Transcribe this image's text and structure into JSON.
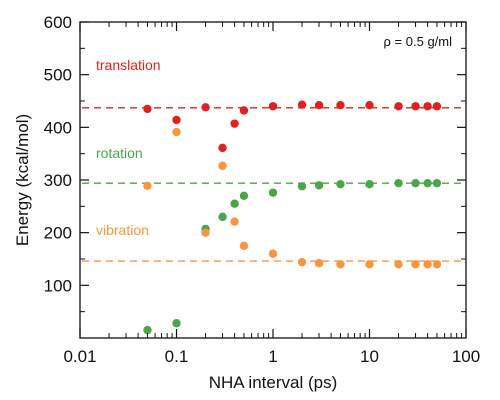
{
  "chart_data": {
    "type": "scatter",
    "xlabel": "NHA interval (ps)",
    "ylabel": "Energy (kcal/mol)",
    "x_scale": "log",
    "xlim": [
      0.01,
      100
    ],
    "ylim": [
      0,
      600
    ],
    "x_ticks": [
      0.01,
      0.1,
      1,
      10,
      100
    ],
    "x_tick_labels": [
      "0.01",
      "0.1",
      "1",
      "10",
      "100"
    ],
    "y_ticks": [
      100,
      200,
      300,
      400,
      500,
      600
    ],
    "y_tick_labels": [
      "100",
      "200",
      "300",
      "400",
      "500",
      "600"
    ],
    "grid": false,
    "annotation": "ρ = 0.5 g/ml",
    "series": [
      {
        "name": "translation",
        "color": "#e0211f",
        "reference_line": 437,
        "points": [
          [
            0.05,
            435
          ],
          [
            0.1,
            414
          ],
          [
            0.2,
            438
          ],
          [
            0.3,
            361
          ],
          [
            0.4,
            407
          ],
          [
            0.5,
            432
          ],
          [
            1,
            440
          ],
          [
            2,
            443
          ],
          [
            3,
            442
          ],
          [
            5,
            442
          ],
          [
            10,
            442
          ],
          [
            20,
            440
          ],
          [
            30,
            440
          ],
          [
            40,
            440
          ],
          [
            50,
            440
          ]
        ]
      },
      {
        "name": "rotation",
        "color": "#4aa648",
        "reference_line": 294,
        "points": [
          [
            0.05,
            15
          ],
          [
            0.1,
            28
          ],
          [
            0.2,
            207
          ],
          [
            0.3,
            230
          ],
          [
            0.4,
            255
          ],
          [
            0.5,
            270
          ],
          [
            1,
            276
          ],
          [
            2,
            288
          ],
          [
            3,
            290
          ],
          [
            5,
            292
          ],
          [
            10,
            292
          ],
          [
            20,
            294
          ],
          [
            30,
            294
          ],
          [
            40,
            294
          ],
          [
            50,
            294
          ]
        ]
      },
      {
        "name": "vibration",
        "color": "#f7963e",
        "reference_line": 146,
        "points": [
          [
            0.05,
            289
          ],
          [
            0.1,
            391
          ],
          [
            0.2,
            200
          ],
          [
            0.3,
            327
          ],
          [
            0.4,
            221
          ],
          [
            0.5,
            175
          ],
          [
            1,
            160
          ],
          [
            2,
            144
          ],
          [
            3,
            142
          ],
          [
            5,
            140
          ],
          [
            10,
            140
          ],
          [
            20,
            140
          ],
          [
            30,
            140
          ],
          [
            40,
            140
          ],
          [
            50,
            140
          ]
        ]
      }
    ]
  }
}
